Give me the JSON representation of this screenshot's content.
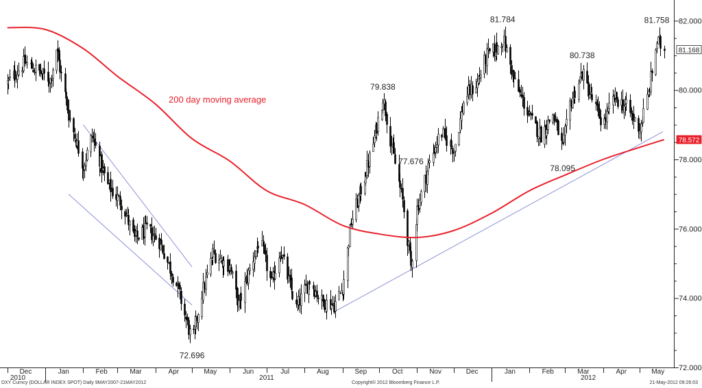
{
  "chart_data": {
    "type": "candlestick",
    "ylim": [
      72,
      82.5
    ],
    "y_ticks": [
      "82.000",
      "80.000",
      "78.000",
      "76.000",
      "74.000",
      "72.000"
    ],
    "x_months": [
      "Dec",
      "Jan",
      "Feb",
      "Mar",
      "Apr",
      "May",
      "Jun",
      "Jul",
      "Aug",
      "Sep",
      "Oct",
      "Nov",
      "Dec",
      "Jan",
      "Feb",
      "Mar",
      "Apr",
      "May"
    ],
    "x_years": [
      "2010",
      "2011",
      "2012"
    ],
    "series": [
      {
        "name": "DXY Curncy (DOLLAR INDEX SPOT)",
        "close_path": [
          {
            "x": "2010-12-01",
            "y": 80.2
          },
          {
            "x": "2010-12-15",
            "y": 80.8
          },
          {
            "x": "2011-01-05",
            "y": 80.3
          },
          {
            "x": "2011-01-10",
            "y": 81.2
          },
          {
            "x": "2011-01-20",
            "y": 79.3
          },
          {
            "x": "2011-02-01",
            "y": 77.8
          },
          {
            "x": "2011-02-08",
            "y": 78.7
          },
          {
            "x": "2011-02-20",
            "y": 77.3
          },
          {
            "x": "2011-03-05",
            "y": 76.7
          },
          {
            "x": "2011-03-15",
            "y": 75.7
          },
          {
            "x": "2011-03-25",
            "y": 76.0
          },
          {
            "x": "2011-04-05",
            "y": 75.6
          },
          {
            "x": "2011-04-20",
            "y": 74.2
          },
          {
            "x": "2011-05-01",
            "y": 72.7
          },
          {
            "x": "2011-05-08",
            "y": 74.0
          },
          {
            "x": "2011-05-18",
            "y": 75.3
          },
          {
            "x": "2011-06-01",
            "y": 74.9
          },
          {
            "x": "2011-06-08",
            "y": 73.8
          },
          {
            "x": "2011-06-15",
            "y": 74.6
          },
          {
            "x": "2011-06-25",
            "y": 75.7
          },
          {
            "x": "2011-07-05",
            "y": 74.4
          },
          {
            "x": "2011-07-12",
            "y": 75.4
          },
          {
            "x": "2011-07-25",
            "y": 73.7
          },
          {
            "x": "2011-08-05",
            "y": 74.5
          },
          {
            "x": "2011-08-15",
            "y": 73.9
          },
          {
            "x": "2011-08-25",
            "y": 73.8
          },
          {
            "x": "2011-09-01",
            "y": 74.3
          },
          {
            "x": "2011-09-08",
            "y": 76.2
          },
          {
            "x": "2011-09-15",
            "y": 77.0
          },
          {
            "x": "2011-09-25",
            "y": 78.3
          },
          {
            "x": "2011-10-04",
            "y": 79.8
          },
          {
            "x": "2011-10-10",
            "y": 78.6
          },
          {
            "x": "2011-10-20",
            "y": 76.8
          },
          {
            "x": "2011-10-27",
            "y": 74.9
          },
          {
            "x": "2011-11-01",
            "y": 76.6
          },
          {
            "x": "2011-11-10",
            "y": 77.8
          },
          {
            "x": "2011-11-20",
            "y": 78.8
          },
          {
            "x": "2011-12-01",
            "y": 78.3
          },
          {
            "x": "2011-12-10",
            "y": 79.8
          },
          {
            "x": "2011-12-20",
            "y": 80.2
          },
          {
            "x": "2011-12-28",
            "y": 81.0
          },
          {
            "x": "2012-01-05",
            "y": 81.2
          },
          {
            "x": "2012-01-10",
            "y": 81.5
          },
          {
            "x": "2012-01-20",
            "y": 80.2
          },
          {
            "x": "2012-02-01",
            "y": 79.2
          },
          {
            "x": "2012-02-10",
            "y": 78.7
          },
          {
            "x": "2012-02-20",
            "y": 79.3
          },
          {
            "x": "2012-02-28",
            "y": 78.3
          },
          {
            "x": "2012-03-05",
            "y": 79.6
          },
          {
            "x": "2012-03-15",
            "y": 80.5
          },
          {
            "x": "2012-03-22",
            "y": 79.8
          },
          {
            "x": "2012-04-01",
            "y": 79.0
          },
          {
            "x": "2012-04-10",
            "y": 79.8
          },
          {
            "x": "2012-04-20",
            "y": 79.5
          },
          {
            "x": "2012-05-01",
            "y": 78.9
          },
          {
            "x": "2012-05-08",
            "y": 79.9
          },
          {
            "x": "2012-05-15",
            "y": 81.4
          },
          {
            "x": "2012-05-21",
            "y": 81.17
          }
        ],
        "last_value": "81.168",
        "color": "#000000"
      },
      {
        "name": "200 day moving average",
        "values": [
          {
            "x": "2010-12-01",
            "y": 81.8
          },
          {
            "x": "2011-01-01",
            "y": 81.75
          },
          {
            "x": "2011-02-01",
            "y": 81.2
          },
          {
            "x": "2011-03-01",
            "y": 80.4
          },
          {
            "x": "2011-04-01",
            "y": 79.6
          },
          {
            "x": "2011-05-01",
            "y": 78.6
          },
          {
            "x": "2011-06-01",
            "y": 77.95
          },
          {
            "x": "2011-07-01",
            "y": 77.1
          },
          {
            "x": "2011-08-01",
            "y": 76.7
          },
          {
            "x": "2011-09-01",
            "y": 76.1
          },
          {
            "x": "2011-10-01",
            "y": 75.85
          },
          {
            "x": "2011-11-01",
            "y": 75.75
          },
          {
            "x": "2011-12-01",
            "y": 75.95
          },
          {
            "x": "2012-01-01",
            "y": 76.45
          },
          {
            "x": "2012-02-01",
            "y": 77.1
          },
          {
            "x": "2012-03-01",
            "y": 77.55
          },
          {
            "x": "2012-04-01",
            "y": 78.0
          },
          {
            "x": "2012-05-01",
            "y": 78.35
          },
          {
            "x": "2012-05-21",
            "y": 78.57
          }
        ],
        "last_value": "78.572",
        "color": "#e8202a"
      }
    ],
    "trendlines": [
      {
        "from": {
          "x": "2011-02-01",
          "y": 79.0
        },
        "to": {
          "x": "2011-05-01",
          "y": 74.9
        }
      },
      {
        "from": {
          "x": "2011-01-20",
          "y": 77.0
        },
        "to": {
          "x": "2011-05-01",
          "y": 73.8
        }
      },
      {
        "from": {
          "x": "2011-08-25",
          "y": 73.6
        },
        "to": {
          "x": "2012-05-20",
          "y": 78.8
        }
      }
    ],
    "annotations": [
      {
        "text": "72.696",
        "x": "2011-05-01",
        "y": 72.7,
        "position": "below"
      },
      {
        "text": "79.838",
        "x": "2011-10-04",
        "y": 79.84,
        "position": "above"
      },
      {
        "text": "77.676",
        "x": "2011-10-27",
        "y": 77.68,
        "position": "above"
      },
      {
        "text": "81.784",
        "x": "2012-01-10",
        "y": 81.78,
        "position": "above"
      },
      {
        "text": "78.095",
        "x": "2012-02-28",
        "y": 78.1,
        "position": "below"
      },
      {
        "text": "80.738",
        "x": "2012-03-15",
        "y": 80.74,
        "position": "above"
      },
      {
        "text": "81.758",
        "x": "2012-05-15",
        "y": 81.76,
        "position": "above"
      }
    ],
    "ma_label": "200 day moving average",
    "grid": false
  },
  "footer": {
    "left": "DXY Curncy (DOLLAR INDEX SPOT) Daily 9MAY2007-21MAY2012",
    "center": "Copyright© 2012 Bloomberg Finance L.P.",
    "right": "21-May-2012 09:26:03"
  },
  "colors": {
    "price": "#000000",
    "ma": "#e8202a",
    "trend": "#8b8fd6",
    "axis": "#222222"
  }
}
